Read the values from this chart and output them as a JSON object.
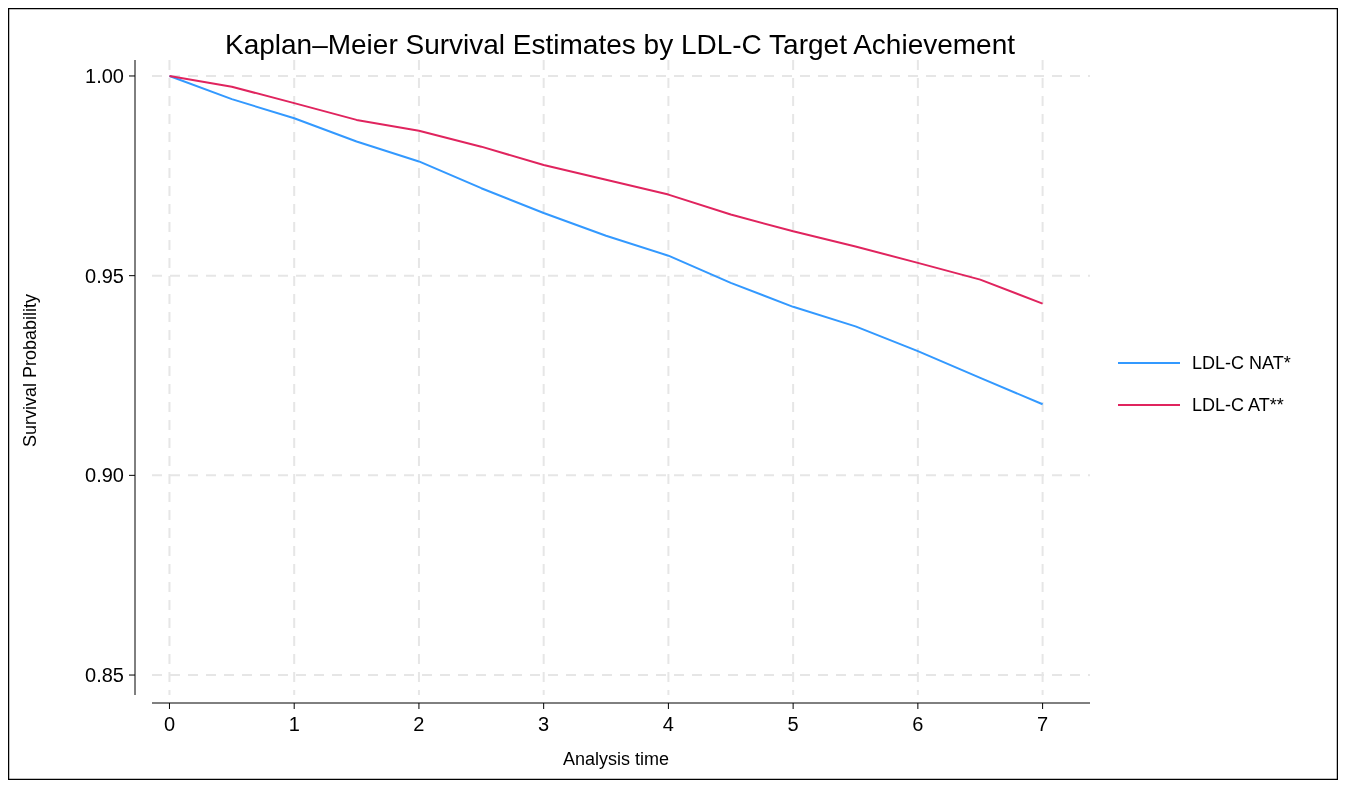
{
  "chart_data": {
    "type": "line",
    "title": "Kaplan–Meier Survival Estimates by LDL-C Target Achievement",
    "xlabel": "Analysis time",
    "ylabel": "Survival Probability",
    "x": [
      0,
      0.5,
      1,
      1.5,
      2,
      2.5,
      3,
      3.5,
      4,
      4.5,
      5,
      5.5,
      6,
      6.5,
      7
    ],
    "series": [
      {
        "name": "LDL-C NAT*",
        "color": "#3399ff",
        "values": [
          1.0,
          0.9942,
          0.9894,
          0.9836,
          0.9786,
          0.9719,
          0.9657,
          0.96,
          0.955,
          0.9482,
          0.9422,
          0.9373,
          0.9311,
          0.9244,
          0.9178
        ]
      },
      {
        "name": "LDL-C AT**",
        "color": "#e0245e",
        "values": [
          1.0,
          0.9973,
          0.9932,
          0.989,
          0.9863,
          0.9823,
          0.9777,
          0.974,
          0.9703,
          0.9653,
          0.9611,
          0.9573,
          0.9532,
          0.949,
          0.943
        ]
      }
    ],
    "xlim": [
      -0.14,
      7.38
    ],
    "ylim": [
      0.845,
      1.004
    ],
    "xticks": [
      0,
      1,
      2,
      3,
      4,
      5,
      6,
      7
    ],
    "yticks": [
      {
        "value": 0.85,
        "label": "0.85"
      },
      {
        "value": 0.9,
        "label": "0.90"
      },
      {
        "value": 0.95,
        "label": "0.95"
      },
      {
        "value": 1,
        "label": "1.00"
      }
    ],
    "grid": true,
    "legend": "right",
    "line_style": "solid",
    "marker": "none"
  }
}
